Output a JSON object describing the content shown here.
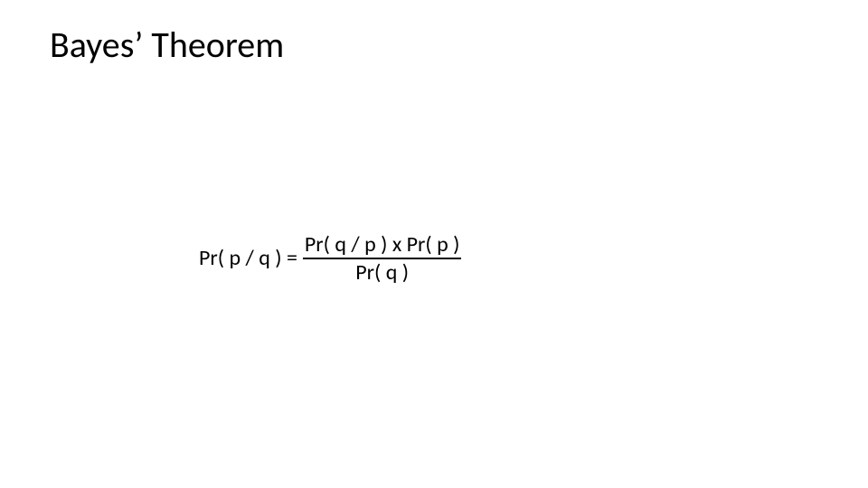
{
  "slide": {
    "title": "Bayes’ Theorem",
    "formula": {
      "lhs": "Pr( p / q ) =",
      "numerator": "Pr( q / p ) x Pr( p )",
      "denominator": "Pr( q )"
    }
  },
  "style": {
    "background_color": "#ffffff",
    "text_color": "#000000",
    "title_fontsize": 40,
    "formula_fontsize": 24,
    "font_family": "Calibri"
  }
}
